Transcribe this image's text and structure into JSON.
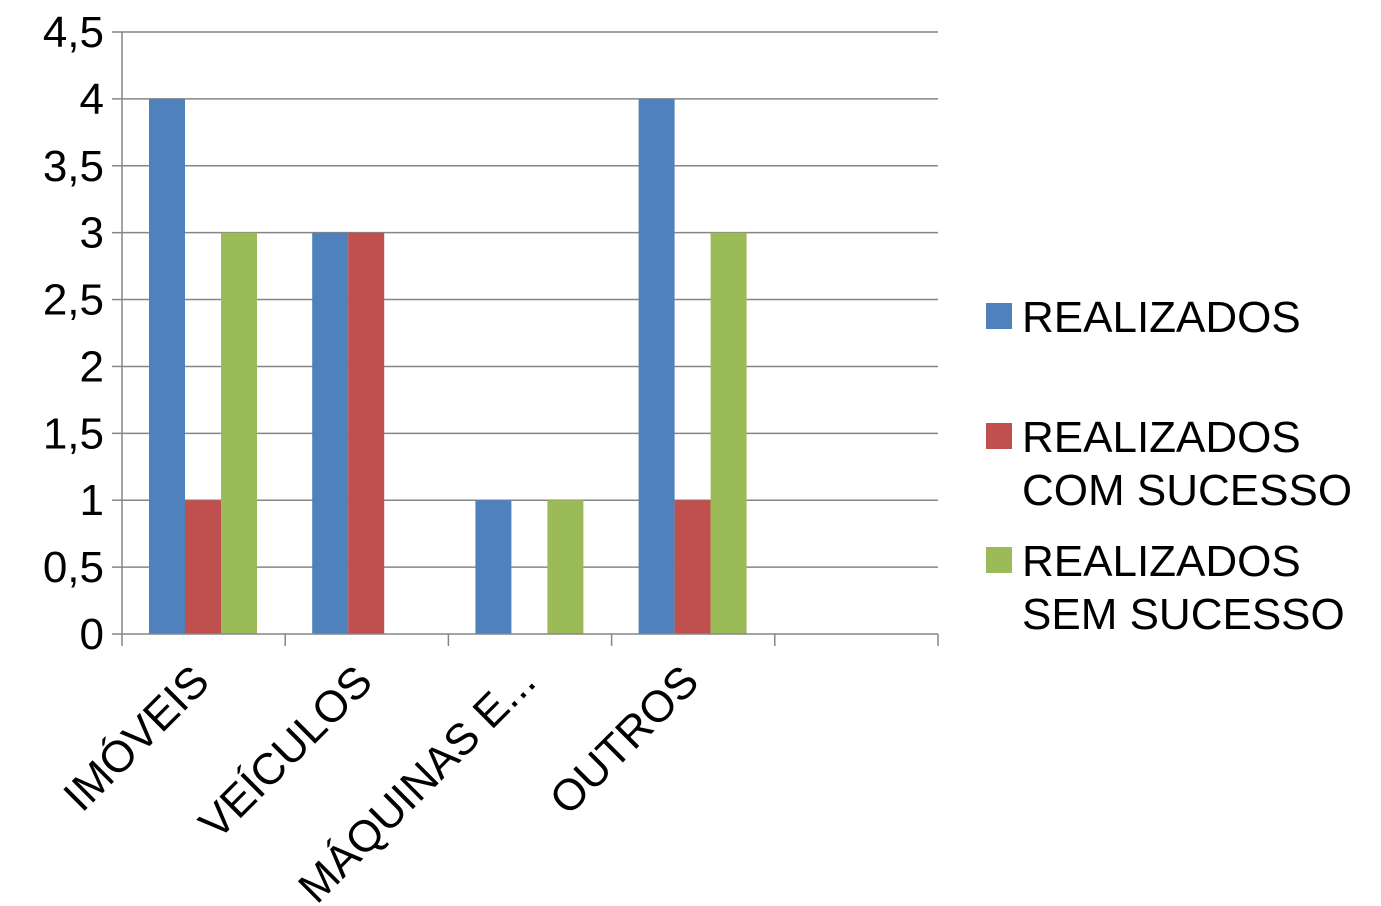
{
  "chart_data": {
    "type": "bar",
    "categories": [
      "IMÓVEIS",
      "VEÍCULOS",
      "MÁQUINAS E...",
      "OUTROS",
      ""
    ],
    "series": [
      {
        "name": "REALIZADOS",
        "values": [
          4,
          3,
          1,
          4,
          0
        ],
        "color": "#4F81BD"
      },
      {
        "name": "REALIZADOS COM SUCESSO",
        "values": [
          1,
          3,
          0,
          1,
          0
        ],
        "color": "#C0504D"
      },
      {
        "name": "REALIZADOS SEM SUCESSO",
        "values": [
          3,
          0,
          1,
          3,
          0
        ],
        "color": "#9BBB59"
      }
    ],
    "y_ticks": [
      "0",
      "0,5",
      "1",
      "1,5",
      "2",
      "2,5",
      "3",
      "3,5",
      "4",
      "4,5"
    ],
    "ylim": [
      0,
      4.5
    ],
    "grid": true,
    "legend_position": "right",
    "legend_lines": [
      [
        "REALIZADOS"
      ],
      [
        "REALIZADOS",
        "COM SUCESSO"
      ],
      [
        "REALIZADOS",
        "SEM SUCESSO"
      ]
    ]
  }
}
